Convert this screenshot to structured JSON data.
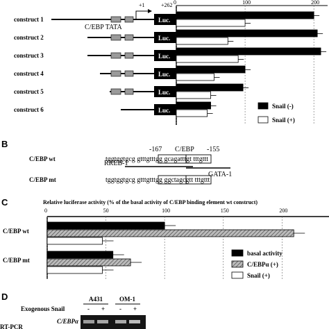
{
  "panel_a": {
    "arrow_label": "+1",
    "end_label": "+262",
    "promoter_label": "C/EBP TATA",
    "luc_label": "Luc.",
    "constructs": [
      "construct 1",
      "construct 2",
      "construct 3",
      "construct 4",
      "construct 5",
      "construct 6"
    ],
    "axis_ticks": [
      "0",
      "100",
      "200"
    ],
    "legend": [
      "Snail (-)",
      "Snail (+)"
    ]
  },
  "panel_b": {
    "letter": "B",
    "pos_left": "-167",
    "pos_mid": "C/EBP",
    "pos_right": "-155",
    "wt_label": "C/EBP wt",
    "wt_seq": "tggtggtgcg gtttgtttgg gcagatttgt tttgttt",
    "mt_label": "C/EBP mt",
    "mt_seq": "tggtggtgcg gtttgtttgg ggctagcgtt tttgttt",
    "rreb": "RREB-1",
    "gata": "GATA-1"
  },
  "panel_c": {
    "letter": "C",
    "title": "Relative luciferase activity (% of the basal activity of C/EBP binding element wt construct)",
    "ticks": [
      "0",
      "50",
      "100",
      "150",
      "200"
    ],
    "groups": [
      "C/EBP wt",
      "C/EBP mt"
    ],
    "legend": [
      "basal activity",
      "C/EBPα (+)",
      "Snail (+)"
    ]
  },
  "panel_d": {
    "letter": "D",
    "cell1": "A431",
    "cell2": "OM-1",
    "row_label": "Exogenous Snail",
    "signs": [
      "-",
      "+",
      "-",
      "+"
    ],
    "gel_label": "C/EBPα",
    "method": "RT-PCR"
  },
  "chart_data": [
    {
      "type": "bar",
      "categories": [
        "construct 1",
        "construct 2",
        "construct 3",
        "construct 4",
        "construct 5",
        "construct 6"
      ],
      "series": [
        {
          "name": "Snail (-)",
          "values": [
            200,
            205,
            210,
            100,
            97,
            50
          ]
        },
        {
          "name": "Snail (+)",
          "values": [
            100,
            75,
            90,
            55,
            50,
            45
          ]
        }
      ],
      "xlim": [
        0,
        220
      ]
    },
    {
      "type": "bar",
      "title": "Relative luciferase activity (% of the basal activity of C/EBP binding element wt construct)",
      "categories": [
        "C/EBP wt",
        "C/EBP mt"
      ],
      "series": [
        {
          "name": "basal activity",
          "values": [
            100,
            56
          ]
        },
        {
          "name": "C/EBPα (+)",
          "values": [
            210,
            71
          ]
        },
        {
          "name": "Snail (+)",
          "values": [
            47,
            47
          ]
        }
      ],
      "xlim": [
        0,
        230
      ]
    }
  ]
}
